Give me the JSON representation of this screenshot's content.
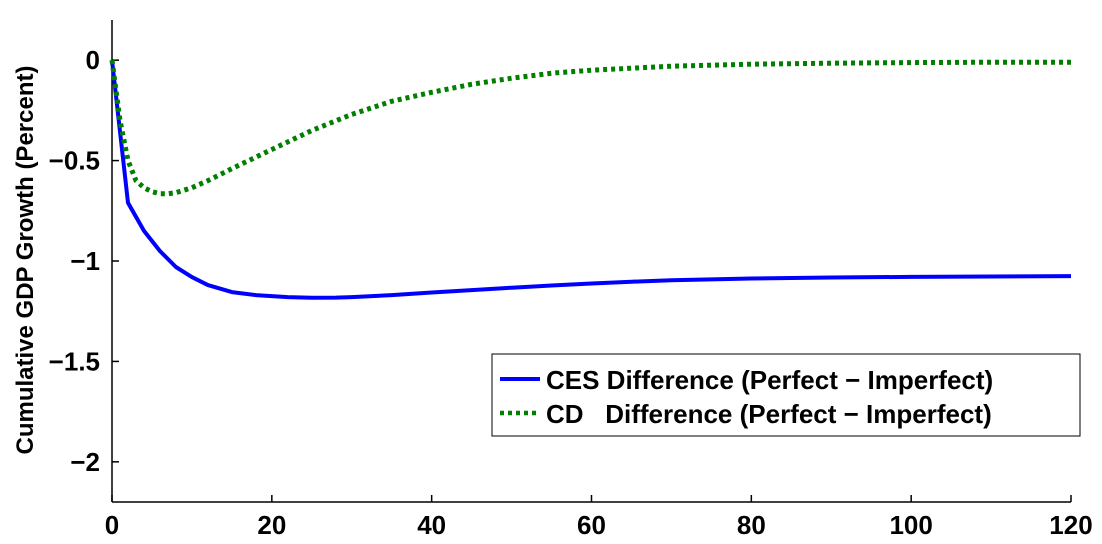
{
  "chart_data": {
    "type": "line",
    "title": "",
    "xlabel": "",
    "ylabel": "Cumulative GDP Growth (Percent)",
    "xlim": [
      0,
      120
    ],
    "ylim": [
      -2.2,
      0.2
    ],
    "x_ticks": [
      "0",
      "20",
      "40",
      "60",
      "80",
      "100",
      "120"
    ],
    "y_ticks": [
      "0",
      "−0.5",
      "−1",
      "−1.5",
      "−2"
    ],
    "x_tick_values": [
      0,
      20,
      40,
      60,
      80,
      100,
      120
    ],
    "y_tick_values": [
      0,
      -0.5,
      -1,
      -1.5,
      -2
    ],
    "grid": false,
    "legend_position": "lower-right",
    "series": [
      {
        "name": "CES Difference (Perfect − Imperfect)",
        "color": "#0000ff",
        "style": "solid",
        "x": [
          0,
          2,
          4,
          6,
          8,
          10,
          12,
          15,
          18,
          20,
          22,
          25,
          28,
          30,
          35,
          40,
          45,
          50,
          55,
          60,
          65,
          70,
          80,
          90,
          100,
          110,
          120
        ],
        "y": [
          0,
          -0.71,
          -0.85,
          -0.95,
          -1.03,
          -1.08,
          -1.12,
          -1.155,
          -1.17,
          -1.175,
          -1.18,
          -1.183,
          -1.182,
          -1.18,
          -1.17,
          -1.157,
          -1.145,
          -1.133,
          -1.122,
          -1.112,
          -1.103,
          -1.096,
          -1.087,
          -1.082,
          -1.079,
          -1.077,
          -1.075
        ]
      },
      {
        "name": "CD   Difference (Perfect − Imperfect)",
        "color": "#007f00",
        "style": "dotted",
        "x": [
          0,
          1,
          2,
          3,
          4,
          5,
          6,
          7,
          8,
          10,
          12,
          15,
          20,
          25,
          30,
          35,
          40,
          45,
          50,
          55,
          60,
          65,
          70,
          80,
          90,
          100,
          110,
          120
        ],
        "y": [
          0,
          -0.3,
          -0.5,
          -0.6,
          -0.635,
          -0.655,
          -0.665,
          -0.665,
          -0.66,
          -0.635,
          -0.6,
          -0.54,
          -0.445,
          -0.35,
          -0.27,
          -0.205,
          -0.16,
          -0.12,
          -0.09,
          -0.065,
          -0.05,
          -0.04,
          -0.03,
          -0.02,
          -0.015,
          -0.012,
          -0.01,
          -0.01
        ]
      }
    ]
  }
}
